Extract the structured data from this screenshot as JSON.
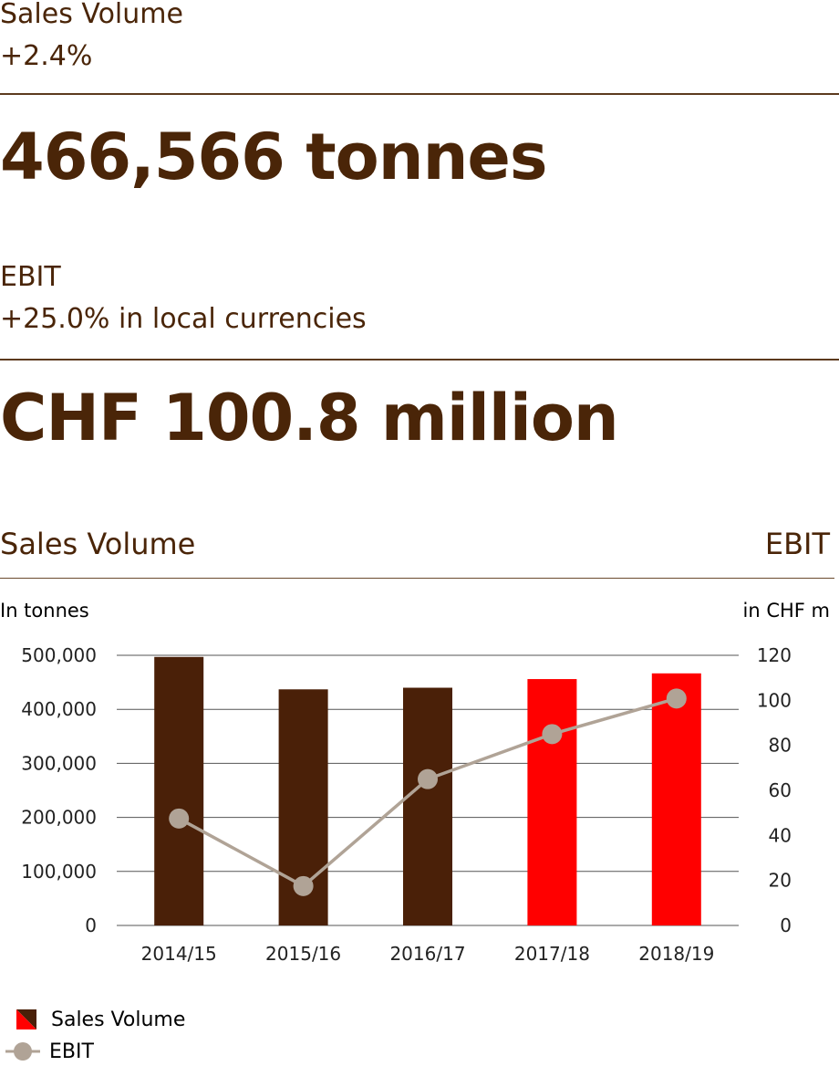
{
  "kpis": {
    "sales": {
      "label": "Sales Volume",
      "change": "+2.4%",
      "value": "466,566 tonnes"
    },
    "ebit": {
      "label": "EBIT",
      "change": "+25.0% in local currencies",
      "value": "CHF 100.8 million"
    }
  },
  "chart_header": {
    "left_title": "Sales Volume",
    "right_title": "EBIT",
    "left_unit": "In tonnes",
    "right_unit": "in CHF m"
  },
  "chart_data": {
    "type": "bar",
    "categories": [
      "2014/15",
      "2015/16",
      "2016/17",
      "2017/18",
      "2018/19"
    ],
    "series": [
      {
        "name": "Sales Volume",
        "type": "bar",
        "axis": "left",
        "values": [
          497000,
          437000,
          440000,
          456000,
          466566
        ],
        "colors": [
          "#4a2008",
          "#4a2008",
          "#4a2008",
          "#ff0000",
          "#ff0000"
        ]
      },
      {
        "name": "EBIT",
        "type": "line",
        "axis": "right",
        "values": [
          47.5,
          17.5,
          65,
          85,
          100.8
        ],
        "color": "#b0a396"
      }
    ],
    "y_left": {
      "min": 0,
      "max": 500000,
      "ticks": [
        "0",
        "100,000",
        "200,000",
        "300,000",
        "400,000",
        "500,000"
      ]
    },
    "y_right": {
      "min": 0,
      "max": 120,
      "ticks": [
        "0",
        "20",
        "40",
        "60",
        "80",
        "100",
        "120"
      ]
    },
    "grid": true,
    "legend_position": "bottom-left"
  },
  "legend": {
    "sales_label": "Sales Volume",
    "ebit_label": "EBIT"
  },
  "colors": {
    "brown": "#4a2008",
    "red": "#ff0000",
    "line": "#b0a396",
    "text": "#4a2508"
  }
}
